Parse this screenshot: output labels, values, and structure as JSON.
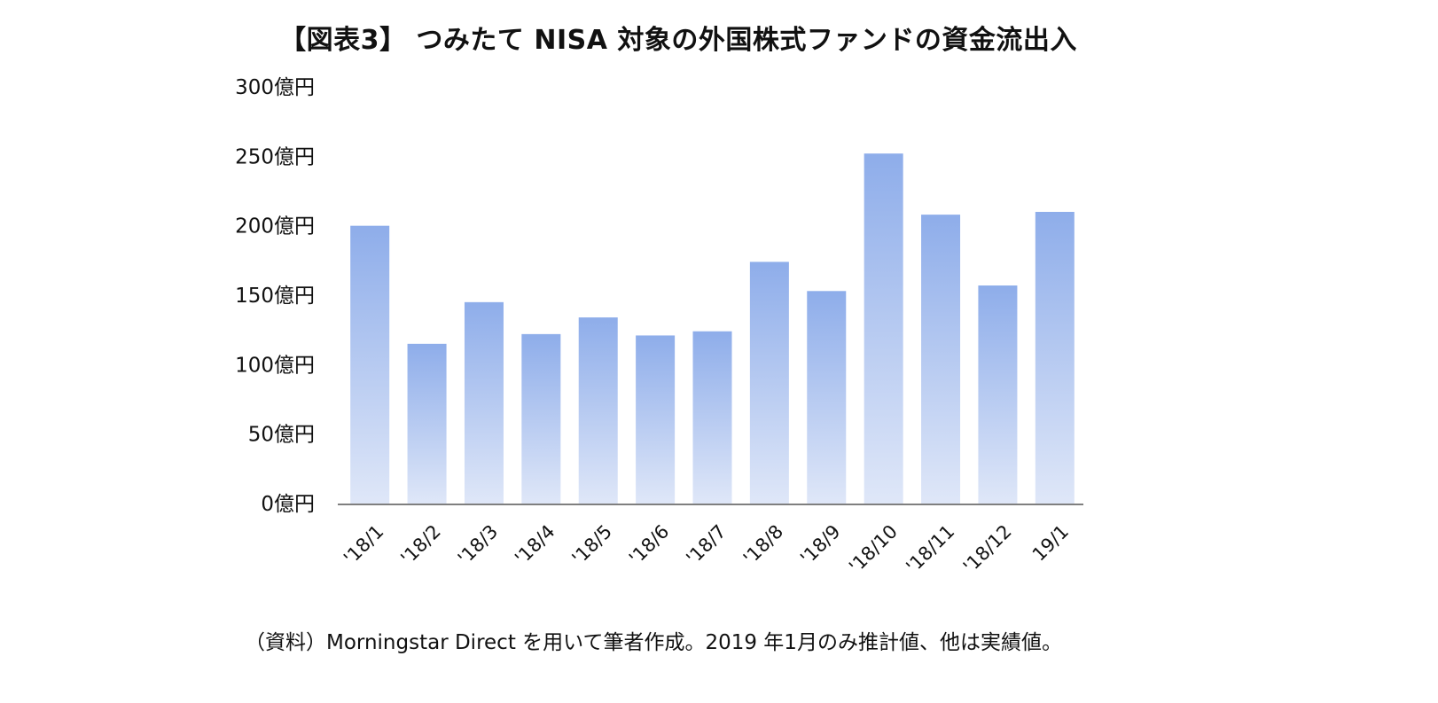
{
  "title": "【図表3】 つみたて NISA 対象の外国株式ファンドの資金流出入",
  "source_note": "（資料）Morningstar Direct を用いて筆者作成。2019 年1月のみ推計値、他は実績値。",
  "colors": {
    "bar_top": "#8eadea",
    "bar_bottom": "#dfe7f8",
    "axis": "#7f7f7f"
  },
  "chart_data": {
    "type": "bar",
    "title": "【図表3】 つみたて NISA 対象の外国株式ファンドの資金流出入",
    "xlabel": "",
    "ylabel": "",
    "ylim": [
      0,
      300
    ],
    "yticks": [
      0,
      50,
      100,
      150,
      200,
      250,
      300
    ],
    "ytick_labels": [
      "0億円",
      "50億円",
      "100億円",
      "150億円",
      "200億円",
      "250億円",
      "300億円"
    ],
    "grid": false,
    "legend": "none",
    "categories": [
      "'18/1",
      "'18/2",
      "'18/3",
      "'18/4",
      "'18/5",
      "'18/6",
      "'18/7",
      "'18/8",
      "'18/9",
      "'18/10",
      "'18/11",
      "'18/12",
      "19/1"
    ],
    "values": [
      200,
      115,
      145,
      122,
      134,
      121,
      124,
      174,
      153,
      252,
      208,
      157,
      210
    ],
    "units": "億円"
  }
}
